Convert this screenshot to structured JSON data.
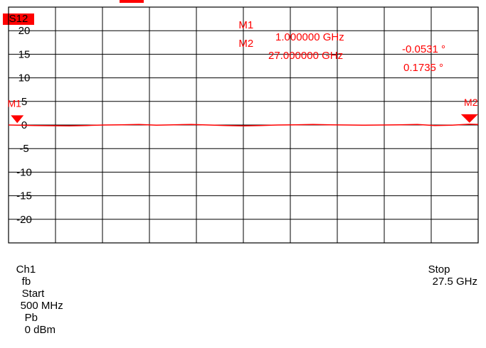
{
  "trace_label": "S12",
  "markers": [
    {
      "name": "M1",
      "freq": "1.000000 GHz",
      "value": "-0.0531 °"
    },
    {
      "name": "M2",
      "freq": "27.000000 GHz",
      "value": "0.1735 °"
    }
  ],
  "status": {
    "channel": "Ch1",
    "fb": "fb",
    "start_label": "Start",
    "start_value": "500 MHz",
    "pb": "Pb",
    "power": "0 dBm",
    "stop_label": "Stop",
    "stop_value": "27.5 GHz"
  },
  "colors": {
    "trace": "#ff0000",
    "grid": "#000000",
    "background": "#ffffff"
  },
  "chart_data": {
    "type": "line",
    "title": "",
    "xlabel": "",
    "ylabel": "",
    "xlim": [
      0.5,
      27.5
    ],
    "ylim": [
      -25,
      25
    ],
    "yticks": [
      20,
      15,
      10,
      5,
      0,
      -5,
      -10,
      -15,
      -20
    ],
    "ytick_labels": [
      "20",
      "15",
      "10",
      "5",
      "0",
      "-5",
      "-10",
      "-15",
      "-20"
    ],
    "grid": true,
    "series": [
      {
        "x": [
          0.5,
          1,
          2,
          3,
          4,
          5,
          6,
          7,
          8,
          9,
          10,
          11,
          12,
          13,
          14,
          15,
          16,
          17,
          18,
          19,
          20,
          21,
          22,
          23,
          24,
          25,
          26,
          27,
          27.5
        ],
        "y": [
          0,
          -0.05,
          -0.1,
          -0.15,
          -0.2,
          -0.1,
          0,
          0.05,
          0.1,
          -0.05,
          0.05,
          0.1,
          0,
          -0.1,
          -0.2,
          -0.1,
          0,
          0.05,
          0.1,
          0.05,
          0,
          -0.05,
          0,
          0.05,
          0.1,
          -0.1,
          -0.05,
          0.17,
          0.1
        ]
      }
    ],
    "markers": [
      {
        "name": "M1",
        "x": 1,
        "y": -0.05
      },
      {
        "name": "M2",
        "x": 27,
        "y": 0.17
      }
    ]
  }
}
